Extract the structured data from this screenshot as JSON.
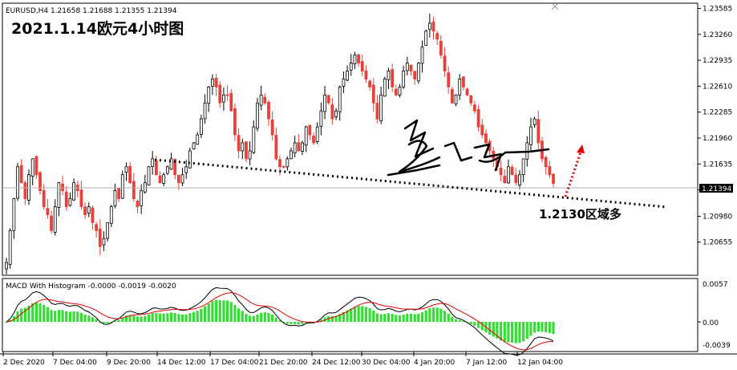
{
  "header": {
    "symbol_line": "EURUSD,H4  1.21658 1.21688 1.21355 1.21394",
    "title": "2021.1.14欧元4小时图"
  },
  "annotation": {
    "text": "1.2130区域多"
  },
  "macd": {
    "label": "MACD With Histogram -0.0000 -0.0019 -0.0020",
    "y_ticks": [
      "0.0057",
      "0.00",
      "-0.0039"
    ]
  },
  "colors": {
    "bull": "#000000",
    "bear": "#e8413a",
    "macd_line": "#000000",
    "signal_line": "#e60000",
    "histogram": "#33dd33",
    "trendline": "#000000",
    "arrow": "#e60000"
  },
  "chart_data": {
    "type": "candlestick",
    "instrument": "EURUSD",
    "timeframe": "H4",
    "last_ohlc": {
      "open": 1.21658,
      "high": 1.21688,
      "low": 1.21355,
      "close": 1.21394
    },
    "ylim": [
      1.2025,
      1.2364
    ],
    "y_ticks": [
      1.20655,
      1.2098,
      1.2131,
      1.21635,
      1.2196,
      1.22285,
      1.2261,
      1.22935,
      1.2326,
      1.23585
    ],
    "current_price": 1.21394,
    "x_ticks": [
      "2 Dec 2020",
      "7 Dec 04:00",
      "9 Dec 20:00",
      "14 Dec 12:00",
      "17 Dec 04:00",
      "21 Dec 20:00",
      "24 Dec 12:00",
      "30 Dec 04:00",
      "4 Jan 20:00",
      "7 Jan 12:00",
      "12 Jan 04:00"
    ],
    "support_level": 1.213,
    "closes": [
      1.204,
      1.208,
      1.212,
      1.216,
      1.214,
      1.212,
      1.215,
      1.217,
      1.215,
      1.213,
      1.211,
      1.21,
      1.208,
      1.211,
      1.214,
      1.213,
      1.211,
      1.212,
      1.214,
      1.213,
      1.211,
      1.21,
      1.211,
      1.209,
      1.208,
      1.206,
      1.207,
      1.209,
      1.211,
      1.213,
      1.212,
      1.215,
      1.216,
      1.214,
      1.212,
      1.211,
      1.213,
      1.214,
      1.216,
      1.217,
      1.215,
      1.214,
      1.215,
      1.216,
      1.217,
      1.215,
      1.214,
      1.215,
      1.216,
      1.218,
      1.219,
      1.22,
      1.222,
      1.224,
      1.226,
      1.227,
      1.226,
      1.224,
      1.225,
      1.225,
      1.223,
      1.22,
      1.218,
      1.219,
      1.217,
      1.218,
      1.221,
      1.224,
      1.225,
      1.224,
      1.222,
      1.22,
      1.217,
      1.216,
      1.216,
      1.217,
      1.218,
      1.219,
      1.218,
      1.219,
      1.221,
      1.22,
      1.219,
      1.221,
      1.223,
      1.225,
      1.224,
      1.222,
      1.223,
      1.226,
      1.227,
      1.228,
      1.229,
      1.23,
      1.229,
      1.228,
      1.227,
      1.226,
      1.224,
      1.222,
      1.225,
      1.227,
      1.228,
      1.226,
      1.225,
      1.226,
      1.228,
      1.229,
      1.228,
      1.227,
      1.229,
      1.231,
      1.233,
      1.234,
      1.233,
      1.232,
      1.23,
      1.228,
      1.226,
      1.224,
      1.225,
      1.227,
      1.226,
      1.225,
      1.224,
      1.223,
      1.221,
      1.22,
      1.219,
      1.218,
      1.217,
      1.216,
      1.215,
      1.214,
      1.216,
      1.215,
      1.214,
      1.215,
      1.217,
      1.219,
      1.221,
      1.222,
      1.219,
      1.217,
      1.216,
      1.215,
      1.2139
    ]
  }
}
